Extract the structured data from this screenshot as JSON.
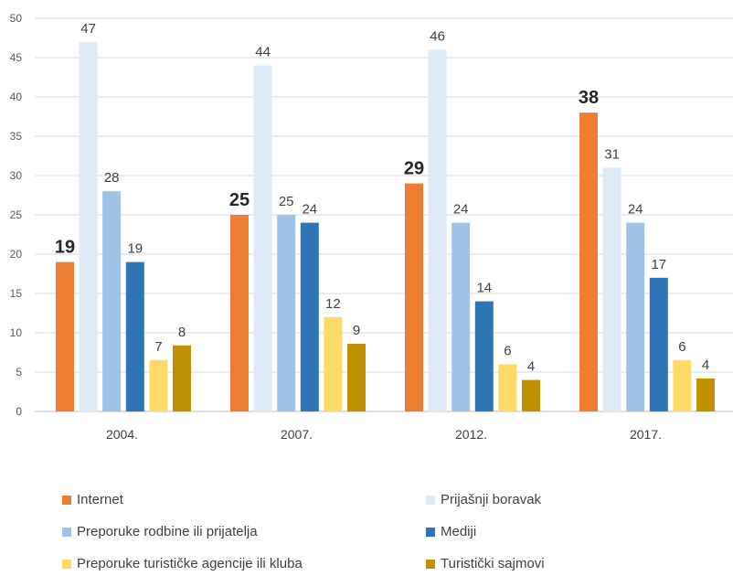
{
  "chart_data": {
    "type": "bar",
    "categories": [
      "2004.",
      "2007.",
      "2012.",
      "2017."
    ],
    "ylim": [
      0,
      50
    ],
    "yticks": [
      0,
      5,
      10,
      15,
      20,
      25,
      30,
      35,
      40,
      45,
      50
    ],
    "grid": true,
    "legend_position": "bottom",
    "series": [
      {
        "name": "Internet",
        "color": "#ED7D31",
        "values": [
          19,
          25,
          29,
          38
        ],
        "labels": [
          "19",
          "25",
          "29",
          "38"
        ],
        "emphasis": true
      },
      {
        "name": "Prijašnji boravak",
        "color": "#DEEBF7",
        "values": [
          47,
          44,
          46,
          31
        ],
        "labels": [
          "47",
          "44",
          "46",
          "31"
        ]
      },
      {
        "name": "Preporuke rodbine ili prijatelja",
        "color": "#9DC3E6",
        "values": [
          28,
          25,
          24,
          24
        ],
        "labels": [
          "28",
          "25",
          "24",
          "24"
        ]
      },
      {
        "name": "Mediji",
        "color": "#2E75B6",
        "values": [
          19,
          24,
          14,
          17
        ],
        "labels": [
          "19",
          "24",
          "14",
          "17"
        ]
      },
      {
        "name": "Preporuke turističke agencije ili kluba",
        "color": "#FFD966",
        "values": [
          6.5,
          12,
          6,
          6.5
        ],
        "labels": [
          "7",
          "12",
          "6",
          "6"
        ]
      },
      {
        "name": "Turistički sajmovi",
        "color": "#BF9000",
        "values": [
          8.4,
          8.6,
          4,
          4.2
        ],
        "labels": [
          "8",
          "9",
          "4",
          "4"
        ]
      }
    ]
  }
}
